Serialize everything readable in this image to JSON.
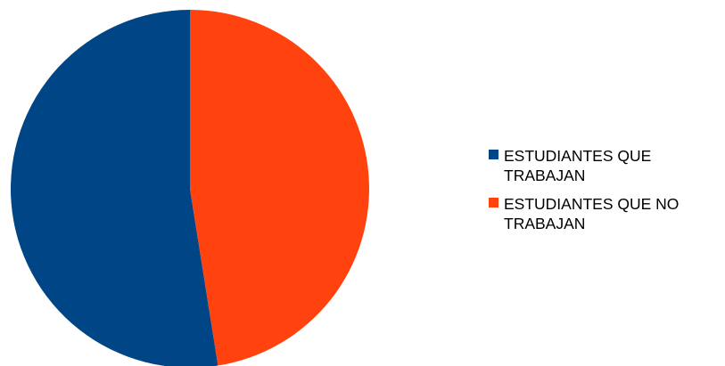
{
  "chart_data": {
    "type": "pie",
    "title": "",
    "categories": [
      "ESTUDIANTES QUE TRABAJAN",
      "ESTUDIANTES QUE NO TRABAJAN"
    ],
    "values": [
      52.5,
      47.5
    ],
    "colors": [
      "#004586",
      "#FF420E"
    ],
    "start_angle_deg": 0,
    "direction": "clockwise",
    "legend_position": "right"
  }
}
